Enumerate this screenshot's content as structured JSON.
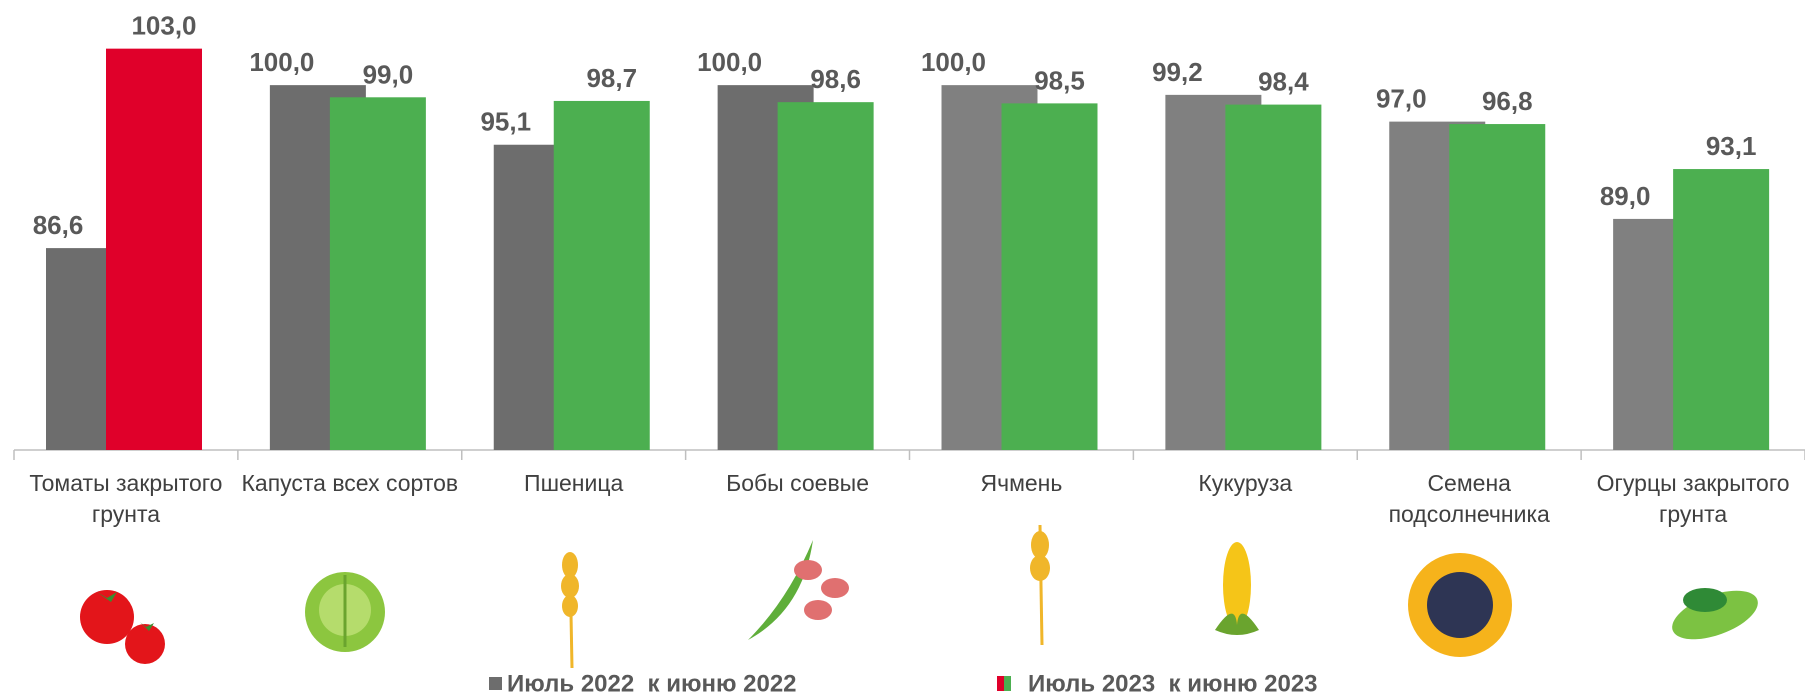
{
  "chart_data": {
    "type": "bar",
    "categories": [
      "Томаты закрытого грунта",
      "Капуста всех сортов",
      "Пшеница",
      "Бобы соевые",
      "Ячмень",
      "Кукуруза",
      "Семена подсолнечника",
      "Огурцы закрытого грунта"
    ],
    "series": [
      {
        "name": "Июль 2022  к июню 2022",
        "color": "#6d6d6d",
        "colors": [
          "#6d6d6d",
          "#6d6d6d",
          "#6d6d6d",
          "#6d6d6d",
          "#808080",
          "#808080",
          "#808080",
          "#808080"
        ],
        "values": [
          86.6,
          100.0,
          95.1,
          100.0,
          100.0,
          99.2,
          97.0,
          89.0
        ],
        "value_labels": [
          "86,6",
          "100,0",
          "95,1",
          "100,0",
          "100,0",
          "99,2",
          "97,0",
          "89,0"
        ]
      },
      {
        "name": "Июль 2023  к июню 2023",
        "color": "#4caf50",
        "colors": [
          "#e0002a",
          "#4caf50",
          "#4caf50",
          "#4caf50",
          "#4caf50",
          "#4caf50",
          "#4caf50",
          "#4caf50"
        ],
        "values": [
          103.0,
          99.0,
          98.7,
          98.6,
          98.5,
          98.4,
          96.8,
          93.1
        ],
        "value_labels": [
          "103,0",
          "99,0",
          "98,7",
          "98,6",
          "98,5",
          "98,4",
          "96,8",
          "93,1"
        ]
      }
    ],
    "ylim": [
      70,
      107
    ],
    "grid": false
  }
}
